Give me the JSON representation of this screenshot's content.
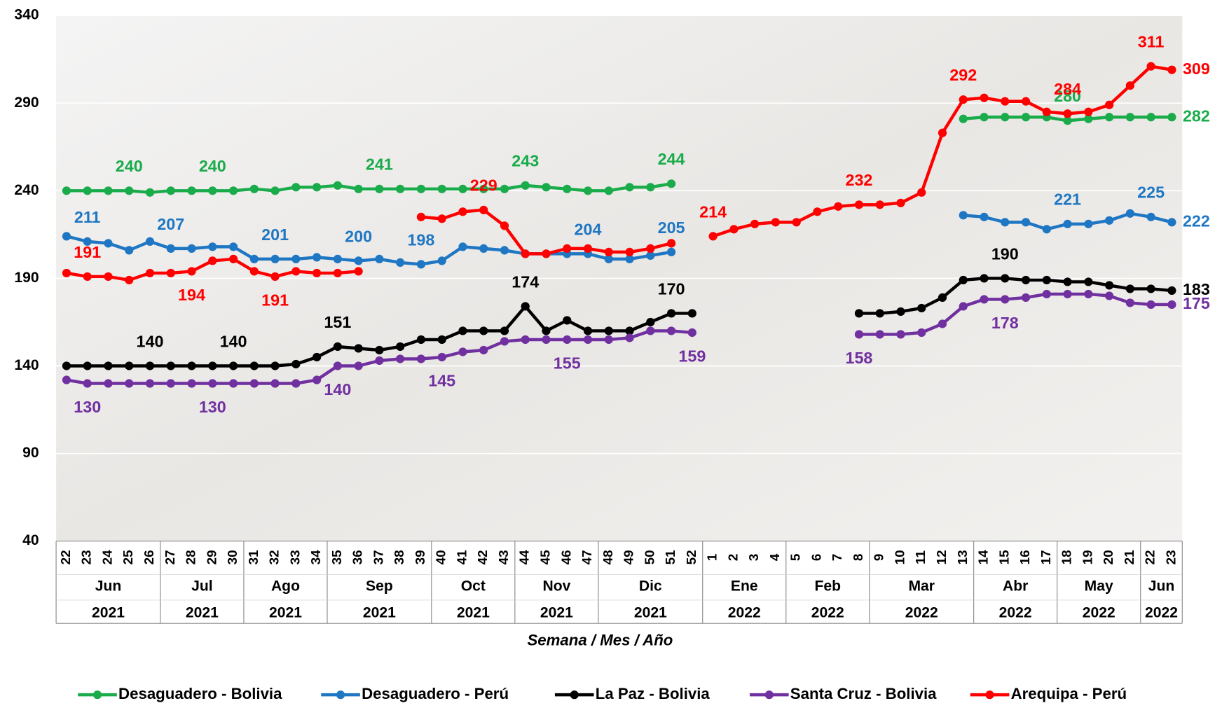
{
  "chart_data": {
    "type": "line",
    "x_title": "Semana / Mes / Año",
    "categories": [
      "22",
      "23",
      "24",
      "25",
      "26",
      "27",
      "28",
      "29",
      "30",
      "31",
      "32",
      "33",
      "34",
      "35",
      "36",
      "37",
      "38",
      "39",
      "40",
      "41",
      "42",
      "43",
      "44",
      "45",
      "46",
      "47",
      "48",
      "49",
      "50",
      "51",
      "52",
      "1",
      "2",
      "3",
      "4",
      "5",
      "6",
      "7",
      "8",
      "9",
      "10",
      "11",
      "12",
      "13",
      "14",
      "15",
      "16",
      "17",
      "18",
      "19",
      "20",
      "21",
      "22",
      "23"
    ],
    "months": [
      "Jun",
      "Jun",
      "Jun",
      "Jun",
      "Jun",
      "Jul",
      "Jul",
      "Jul",
      "Jul",
      "Ago",
      "Ago",
      "Ago",
      "Ago",
      "Sep",
      "Sep",
      "Sep",
      "Sep",
      "Sep",
      "Oct",
      "Oct",
      "Oct",
      "Oct",
      "Nov",
      "Nov",
      "Nov",
      "Nov",
      "Dic",
      "Dic",
      "Dic",
      "Dic",
      "Dic",
      "Ene",
      "Ene",
      "Ene",
      "Ene",
      "Feb",
      "Feb",
      "Feb",
      "Feb",
      "Mar",
      "Mar",
      "Mar",
      "Mar",
      "Mar",
      "Abr",
      "Abr",
      "Abr",
      "Abr",
      "May",
      "May",
      "May",
      "May",
      "Jun",
      "Jun"
    ],
    "years": [
      "2021",
      "2021",
      "2021",
      "2021",
      "2021",
      "2021",
      "2021",
      "2021",
      "2021",
      "2021",
      "2021",
      "2021",
      "2021",
      "2021",
      "2021",
      "2021",
      "2021",
      "2021",
      "2021",
      "2021",
      "2021",
      "2021",
      "2021",
      "2021",
      "2021",
      "2021",
      "2021",
      "2021",
      "2021",
      "2021",
      "2021",
      "2022",
      "2022",
      "2022",
      "2022",
      "2022",
      "2022",
      "2022",
      "2022",
      "2022",
      "2022",
      "2022",
      "2022",
      "2022",
      "2022",
      "2022",
      "2022",
      "2022",
      "2022",
      "2022",
      "2022",
      "2022",
      "2022",
      "2022"
    ],
    "ylim": [
      40,
      340
    ],
    "yticks": [
      40,
      90,
      140,
      190,
      240,
      290,
      340
    ],
    "grid": true,
    "legend": "bottom",
    "series": [
      {
        "name": "Desaguadero - Bolivia",
        "color": "#1aab4b",
        "values": [
          240,
          240,
          240,
          240,
          239,
          240,
          240,
          240,
          240,
          241,
          240,
          242,
          242,
          243,
          241,
          241,
          241,
          241,
          241,
          241,
          241,
          241,
          243,
          242,
          241,
          240,
          240,
          242,
          242,
          244,
          null,
          null,
          null,
          null,
          null,
          null,
          null,
          null,
          null,
          null,
          null,
          null,
          null,
          281,
          282,
          282,
          282,
          282,
          280,
          281,
          282,
          282,
          282,
          282
        ],
        "labeled": [
          3,
          7,
          15,
          22,
          29,
          48,
          53
        ]
      },
      {
        "name": "Desaguadero - Perú",
        "color": "#1f77c4",
        "values": [
          214,
          211,
          210,
          206,
          211,
          207,
          207,
          208,
          208,
          201,
          201,
          201,
          202,
          201,
          200,
          201,
          199,
          198,
          200,
          208,
          207,
          206,
          204,
          204,
          204,
          204,
          201,
          201,
          203,
          205,
          null,
          null,
          null,
          null,
          null,
          null,
          null,
          null,
          null,
          null,
          null,
          null,
          null,
          226,
          225,
          222,
          222,
          218,
          221,
          221,
          223,
          227,
          225,
          222
        ],
        "labeled": [
          1,
          5,
          10,
          14,
          17,
          25,
          29,
          48,
          52,
          53
        ]
      },
      {
        "name": "La Paz - Bolivia",
        "color": "#000000",
        "values": [
          140,
          140,
          140,
          140,
          140,
          140,
          140,
          140,
          140,
          140,
          140,
          141,
          145,
          151,
          150,
          149,
          151,
          155,
          155,
          160,
          160,
          160,
          174,
          160,
          166,
          160,
          160,
          160,
          165,
          170,
          170,
          null,
          null,
          null,
          null,
          null,
          null,
          null,
          170,
          170,
          171,
          173,
          179,
          189,
          190,
          190,
          189,
          189,
          188,
          188,
          186,
          184,
          184,
          183
        ],
        "labeled": [
          4,
          8,
          13,
          22,
          29,
          45,
          53
        ]
      },
      {
        "name": "Santa Cruz - Bolivia",
        "color": "#7030a0",
        "values": [
          132,
          130,
          130,
          130,
          130,
          130,
          130,
          130,
          130,
          130,
          130,
          130,
          132,
          140,
          140,
          143,
          144,
          144,
          145,
          148,
          149,
          154,
          155,
          155,
          155,
          155,
          155,
          156,
          160,
          160,
          159,
          null,
          null,
          null,
          null,
          null,
          null,
          null,
          158,
          158,
          158,
          159,
          164,
          174,
          178,
          178,
          179,
          181,
          181,
          181,
          180,
          176,
          175,
          175
        ],
        "labeled": [
          1,
          7,
          13,
          18,
          24,
          30,
          38,
          45,
          53
        ]
      },
      {
        "name": "Arequipa - Perú",
        "color": "#ff0000",
        "values": [
          193,
          191,
          191,
          189,
          193,
          193,
          194,
          200,
          201,
          194,
          191,
          194,
          193,
          193,
          194,
          null,
          null,
          225,
          224,
          228,
          229,
          220,
          204,
          204,
          207,
          207,
          205,
          205,
          207,
          210,
          null,
          214,
          218,
          221,
          222,
          222,
          228,
          231,
          232,
          232,
          233,
          239,
          273,
          292,
          293,
          291,
          291,
          285,
          284,
          285,
          289,
          300,
          311,
          309
        ],
        "labeled": [
          1,
          6,
          10,
          20,
          31,
          38,
          43,
          48,
          52,
          53
        ]
      }
    ]
  }
}
